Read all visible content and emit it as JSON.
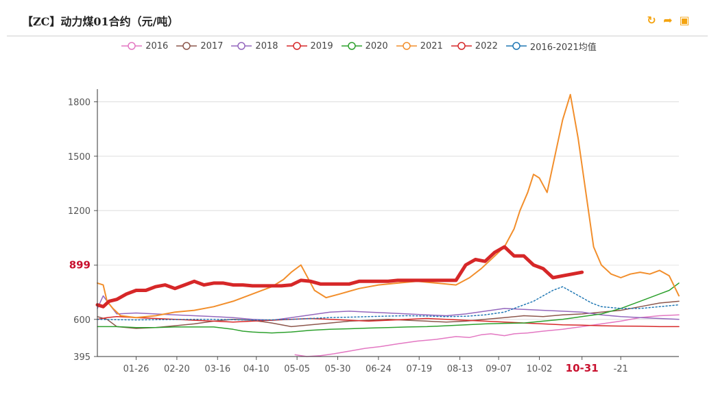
{
  "header": {
    "title": "【ZC】动力煤01合约（元/吨）",
    "tools": [
      {
        "name": "restore-icon",
        "glyph": "↻"
      },
      {
        "name": "share-icon",
        "glyph": "➦"
      },
      {
        "name": "save-image-icon",
        "glyph": "▣"
      }
    ]
  },
  "chart_data": {
    "type": "line",
    "title": "【ZC】动力煤01合约（元/吨）",
    "xlabel": "",
    "ylabel": "",
    "x_range": [
      0,
      300
    ],
    "ylim": [
      395,
      1870
    ],
    "x_ticks": [
      {
        "x": 20,
        "label": "01-26"
      },
      {
        "x": 41,
        "label": "02-20"
      },
      {
        "x": 62,
        "label": "03-16"
      },
      {
        "x": 82,
        "label": "04-10"
      },
      {
        "x": 103,
        "label": "05-05"
      },
      {
        "x": 124,
        "label": "05-30"
      },
      {
        "x": 145,
        "label": "06-24"
      },
      {
        "x": 166,
        "label": "07-19"
      },
      {
        "x": 187,
        "label": "08-13"
      },
      {
        "x": 207,
        "label": "09-07"
      },
      {
        "x": 228,
        "label": "10-02"
      },
      {
        "x": 250,
        "label": "10-31",
        "highlight": true
      },
      {
        "x": 270,
        "label": "-21"
      }
    ],
    "y_ticks": [
      {
        "y": 395,
        "label": "395"
      },
      {
        "y": 600,
        "label": "600"
      },
      {
        "y": 899,
        "label": "899",
        "highlight": true
      },
      {
        "y": 1200,
        "label": "1200"
      },
      {
        "y": 1500,
        "label": "1500"
      },
      {
        "y": 1800,
        "label": "1800"
      }
    ],
    "grid": true,
    "legend_position": "top-center",
    "series": [
      {
        "name": "2016",
        "color": "#e377c2",
        "width": 1.5,
        "x": [
          102,
          108,
          115,
          122,
          130,
          138,
          146,
          155,
          165,
          175,
          185,
          192,
          198,
          203,
          210,
          215,
          222,
          230,
          240,
          250,
          260,
          270,
          280,
          290,
          300
        ],
        "y": [
          405,
          395,
          400,
          410,
          425,
          440,
          450,
          465,
          480,
          490,
          505,
          500,
          515,
          520,
          510,
          520,
          525,
          535,
          545,
          560,
          575,
          590,
          610,
          620,
          625
        ]
      },
      {
        "name": "2017",
        "color": "#8c564b",
        "width": 1.5,
        "x": [
          0,
          5,
          10,
          20,
          30,
          40,
          50,
          60,
          70,
          80,
          90,
          100,
          110,
          120,
          130,
          140,
          150,
          160,
          170,
          180,
          190,
          200,
          210,
          220,
          230,
          240,
          250,
          260,
          270,
          280,
          290,
          300
        ],
        "y": [
          615,
          600,
          560,
          550,
          555,
          565,
          575,
          590,
          600,
          595,
          580,
          560,
          570,
          580,
          590,
          595,
          600,
          595,
          590,
          585,
          590,
          600,
          610,
          620,
          615,
          625,
          630,
          640,
          650,
          670,
          690,
          700
        ]
      },
      {
        "name": "2018",
        "color": "#9467bd",
        "width": 1.5,
        "x": [
          0,
          3,
          5,
          10,
          20,
          30,
          40,
          50,
          60,
          70,
          80,
          90,
          100,
          110,
          120,
          130,
          140,
          150,
          160,
          170,
          180,
          190,
          200,
          210,
          220,
          230,
          240,
          250,
          260,
          270,
          280,
          290,
          300
        ],
        "y": [
          660,
          730,
          700,
          630,
          635,
          630,
          625,
          620,
          615,
          610,
          600,
          595,
          610,
          625,
          640,
          645,
          640,
          635,
          630,
          625,
          620,
          630,
          645,
          660,
          655,
          650,
          645,
          640,
          625,
          615,
          610,
          605,
          600
        ]
      },
      {
        "name": "2019",
        "color": "#d62728",
        "width": 1.5,
        "x": [
          0,
          5,
          10,
          20,
          30,
          40,
          50,
          60,
          70,
          80,
          90,
          100,
          110,
          120,
          130,
          140,
          150,
          160,
          170,
          180,
          190,
          200,
          210,
          220,
          230,
          240,
          250,
          260,
          270,
          280,
          290,
          300
        ],
        "y": [
          600,
          610,
          615,
          610,
          605,
          600,
          595,
          590,
          585,
          590,
          595,
          600,
          605,
          600,
          595,
          590,
          595,
          600,
          605,
          600,
          595,
          590,
          585,
          580,
          575,
          570,
          568,
          565,
          563,
          562,
          560,
          560
        ]
      },
      {
        "name": "2020",
        "color": "#2ca02c",
        "width": 1.5,
        "x": [
          0,
          10,
          20,
          30,
          40,
          50,
          60,
          70,
          75,
          80,
          90,
          100,
          110,
          120,
          130,
          140,
          150,
          160,
          170,
          180,
          190,
          200,
          210,
          220,
          230,
          240,
          250,
          260,
          270,
          280,
          290,
          295,
          300
        ],
        "y": [
          560,
          560,
          555,
          555,
          558,
          558,
          558,
          545,
          535,
          530,
          525,
          530,
          540,
          545,
          548,
          552,
          555,
          558,
          560,
          565,
          570,
          575,
          578,
          580,
          590,
          600,
          615,
          630,
          660,
          700,
          740,
          760,
          800
        ]
      },
      {
        "name": "2021",
        "color": "#f28e2b",
        "width": 2,
        "x": [
          0,
          3,
          5,
          8,
          12,
          20,
          30,
          40,
          50,
          60,
          70,
          80,
          90,
          96,
          100,
          105,
          108,
          112,
          118,
          125,
          135,
          145,
          155,
          165,
          175,
          185,
          192,
          198,
          205,
          210,
          215,
          218,
          222,
          225,
          228,
          232,
          236,
          240,
          244,
          248,
          252,
          256,
          260,
          265,
          270,
          275,
          280,
          285,
          290,
          295,
          300
        ],
        "y": [
          800,
          790,
          700,
          660,
          620,
          610,
          620,
          640,
          650,
          670,
          700,
          740,
          780,
          820,
          860,
          900,
          840,
          760,
          720,
          740,
          770,
          790,
          800,
          810,
          800,
          790,
          830,
          880,
          950,
          1000,
          1100,
          1200,
          1300,
          1400,
          1380,
          1300,
          1500,
          1700,
          1840,
          1600,
          1300,
          1000,
          900,
          850,
          830,
          850,
          860,
          850,
          870,
          840,
          730
        ]
      },
      {
        "name": "2022",
        "color": "#d62728",
        "width": 5,
        "x": [
          0,
          3,
          6,
          10,
          15,
          20,
          25,
          30,
          35,
          40,
          45,
          50,
          55,
          60,
          65,
          70,
          75,
          80,
          85,
          90,
          95,
          100,
          105,
          110,
          115,
          120,
          125,
          130,
          135,
          140,
          145,
          150,
          155,
          160,
          165,
          170,
          175,
          180,
          185,
          190,
          195,
          200,
          205,
          210,
          215,
          220,
          225,
          230,
          235,
          240,
          245,
          250
        ],
        "y": [
          680,
          670,
          700,
          710,
          740,
          760,
          760,
          780,
          790,
          770,
          790,
          810,
          790,
          800,
          800,
          790,
          790,
          785,
          785,
          785,
          785,
          790,
          815,
          810,
          795,
          795,
          795,
          795,
          810,
          810,
          810,
          810,
          815,
          815,
          815,
          815,
          815,
          815,
          815,
          900,
          930,
          920,
          970,
          1000,
          950,
          950,
          900,
          880,
          830,
          840,
          850,
          860
        ]
      },
      {
        "name": "2016-2021均值",
        "color": "#1f77b4",
        "width": 1.5,
        "dashed": true,
        "x": [
          0,
          10,
          20,
          30,
          40,
          50,
          60,
          70,
          80,
          90,
          100,
          110,
          120,
          130,
          140,
          150,
          160,
          170,
          180,
          190,
          200,
          210,
          215,
          220,
          225,
          230,
          235,
          240,
          245,
          250,
          255,
          260,
          270,
          280,
          290,
          300
        ],
        "y": [
          600,
          598,
          597,
          598,
          599,
          600,
          600,
          598,
          596,
          597,
          600,
          605,
          610,
          612,
          615,
          618,
          620,
          618,
          615,
          617,
          625,
          640,
          660,
          680,
          700,
          730,
          760,
          780,
          750,
          720,
          690,
          670,
          660,
          660,
          670,
          680
        ]
      }
    ]
  }
}
